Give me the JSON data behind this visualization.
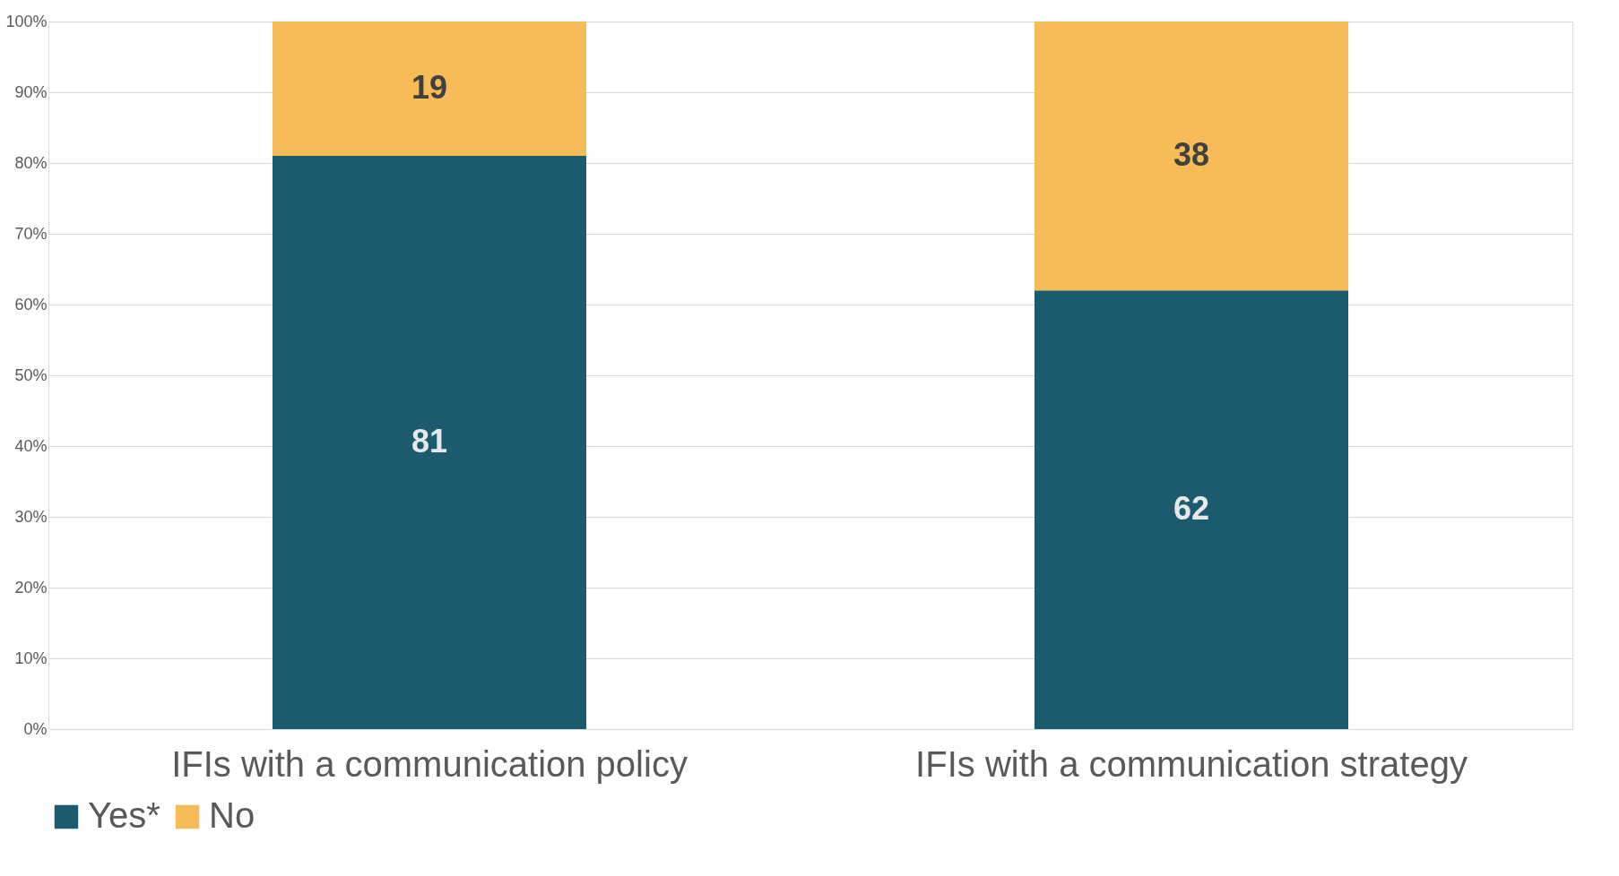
{
  "chart_data": {
    "type": "bar",
    "stacked": true,
    "categories": [
      "IFIs with a communication policy",
      "IFIs with a communication strategy"
    ],
    "series": [
      {
        "name": "Yes*",
        "color": "#1a5c6e",
        "values": [
          81,
          62
        ]
      },
      {
        "name": "No",
        "color": "#f7bb58",
        "values": [
          19,
          38
        ]
      }
    ],
    "ylim": [
      0,
      100
    ],
    "yticks": [
      {
        "value": 0,
        "label": "0%"
      },
      {
        "value": 10,
        "label": "10%"
      },
      {
        "value": 20,
        "label": "20%"
      },
      {
        "value": 30,
        "label": "30%"
      },
      {
        "value": 40,
        "label": "40%"
      },
      {
        "value": 50,
        "label": "50%"
      },
      {
        "value": 60,
        "label": "60%"
      },
      {
        "value": 70,
        "label": "70%"
      },
      {
        "value": 80,
        "label": "80%"
      },
      {
        "value": 90,
        "label": "90%"
      },
      {
        "value": 100,
        "label": "100%"
      }
    ],
    "grid": "y",
    "legend": "bottom",
    "data_labels": true
  }
}
